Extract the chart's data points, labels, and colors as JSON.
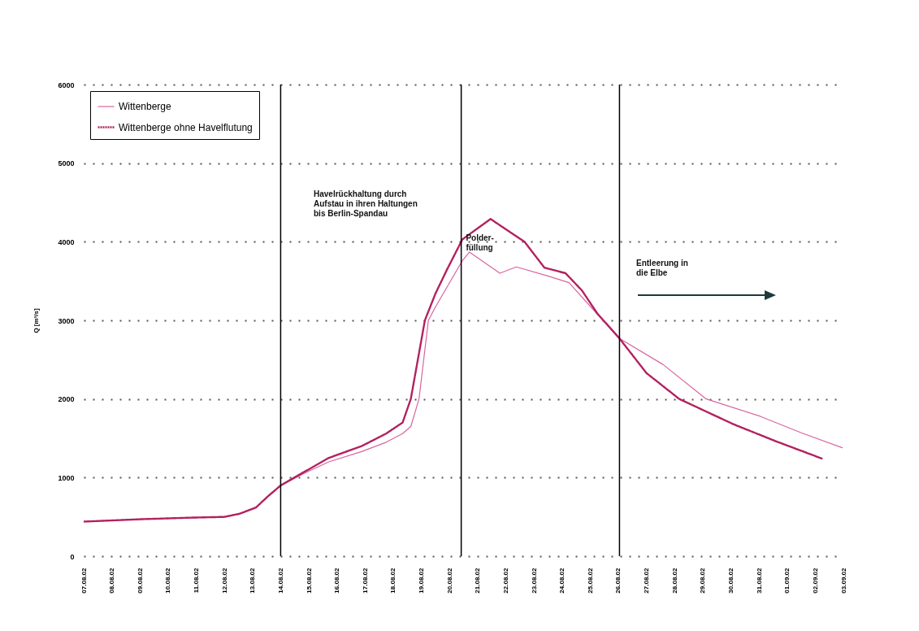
{
  "chart_data": {
    "type": "line",
    "ylabel": "Q [m³/s]",
    "series": [
      {
        "name": "Wittenberge",
        "color": "#d9649f",
        "line_style": "solid",
        "x": [
          "--08-07",
          "--08-09",
          "--08-10T19:00",
          "--08-12",
          "--08-12T13:00",
          "--08-13T03:00",
          "--08-13T13:00",
          "--08-14",
          "--08-14T21:00",
          "--08-15T17:00",
          "--08-16T21:00",
          "--08-17T18:00",
          "--08-18T08:00",
          "--08-18T15:00",
          "--08-18T22:00",
          "--08-19T06:00",
          "--08-19T12:00",
          "--08-20T11:00",
          "--08-20T17:00",
          "--08-21T19:00",
          "--08-22T09:00",
          "--08-23T13:00",
          "--08-24T06:00",
          "--08-25T06:00",
          "--08-26T01:00",
          "--08-27T14:00",
          "--08-29T03:00",
          "--08-31T01:00",
          "--09-01T12:00",
          "--09-02T23:00"
        ],
        "values": [
          440,
          470,
          490,
          500,
          540,
          620,
          760,
          900,
          1060,
          1200,
          1330,
          1450,
          1560,
          1650,
          2000,
          3000,
          3170,
          3760,
          3870,
          3600,
          3680,
          3560,
          3480,
          3080,
          2770,
          2440,
          2000,
          1780,
          1570,
          1380
        ]
      },
      {
        "name": "Wittenberge ohne Havelflutung",
        "color": "#b3205f",
        "line_style": "dotted",
        "x": [
          "--08-07",
          "--08-09",
          "--08-10T19:00",
          "--08-12",
          "--08-12T13:00",
          "--08-13T03:00",
          "--08-13T13:00",
          "--08-14",
          "--08-14T21:00",
          "--08-15T17:00",
          "--08-16T21:00",
          "--08-17T18:00",
          "--08-18T08:00",
          "--08-18T15:00",
          "--08-19T03:00",
          "--08-19T12:00",
          "--08-19T22:00",
          "--08-20T11:00",
          "--08-21T11:00",
          "--08-22T16:00",
          "--08-23T09:00",
          "--08-24T03:00",
          "--08-24T17:00",
          "--08-25T06:00",
          "--08-26T01:00",
          "--08-27T00:00",
          "--08-28T04:00",
          "--08-30T02:00",
          "--08-31T13:00",
          "--09-02T06:00"
        ],
        "values": [
          440,
          470,
          490,
          500,
          540,
          620,
          760,
          900,
          1080,
          1250,
          1400,
          1560,
          1700,
          2000,
          3000,
          3340,
          3650,
          4030,
          4290,
          4000,
          3670,
          3600,
          3380,
          3090,
          2770,
          2330,
          2000,
          1680,
          1470,
          1240
        ]
      }
    ],
    "xlim": [
      "--08-07",
      "--09-03"
    ],
    "xticks": [
      {
        "value": "--08-07",
        "label": "07.08.02"
      },
      {
        "value": "--08-08",
        "label": "08.08.02"
      },
      {
        "value": "--08-09",
        "label": "09.08.02"
      },
      {
        "value": "--08-10",
        "label": "10.08.02"
      },
      {
        "value": "--08-11",
        "label": "11.08.02"
      },
      {
        "value": "--08-12",
        "label": "12.08.02"
      },
      {
        "value": "--08-13",
        "label": "13.08.02"
      },
      {
        "value": "--08-14",
        "label": "14.08.02"
      },
      {
        "value": "--08-15",
        "label": "15.08.02"
      },
      {
        "value": "--08-16",
        "label": "16.08.02"
      },
      {
        "value": "--08-17",
        "label": "17.08.02"
      },
      {
        "value": "--08-18",
        "label": "18.08.02"
      },
      {
        "value": "--08-19",
        "label": "19.08.02"
      },
      {
        "value": "--08-20",
        "label": "20.08.02"
      },
      {
        "value": "--08-21",
        "label": "21.08.02"
      },
      {
        "value": "--08-22",
        "label": "22.08.02"
      },
      {
        "value": "--08-23",
        "label": "23.08.02"
      },
      {
        "value": "--08-24",
        "label": "24.08.02"
      },
      {
        "value": "--08-25",
        "label": "25.08.02"
      },
      {
        "value": "--08-26",
        "label": "26.08.02"
      },
      {
        "value": "--08-27",
        "label": "27.08.02"
      },
      {
        "value": "--08-28",
        "label": "28.08.02"
      },
      {
        "value": "--08-29",
        "label": "29.08.02"
      },
      {
        "value": "--08-30",
        "label": "30.08.02"
      },
      {
        "value": "--08-31",
        "label": "31.08.02"
      },
      {
        "value": "--09-01",
        "label": "01.09.02"
      },
      {
        "value": "--09-02",
        "label": "02.09.02"
      },
      {
        "value": "--09-03",
        "label": "03.09.02"
      }
    ],
    "ylim": [
      0,
      6000
    ],
    "yticks": [
      0,
      1000,
      2000,
      3000,
      4000,
      5000,
      6000
    ],
    "grid": "y",
    "legend": "top left",
    "ref_lines": [
      {
        "axis": "x",
        "value": "--08-14",
        "color": "#000000"
      },
      {
        "axis": "x",
        "value": "--08-20T10:00",
        "color": "#000000"
      },
      {
        "axis": "x",
        "value": "--08-26T01:00",
        "color": "#000000"
      }
    ],
    "annotations": [
      "Havelrückhaltung durch\nAufstau in ihren Haltungen\nbis Berlin-Spandau",
      {
        "text": "Polder-\nfüllung",
        "x": "--08-20T14:00",
        "y": 4100
      },
      "Entleerung in\ndie Elbe"
    ]
  }
}
